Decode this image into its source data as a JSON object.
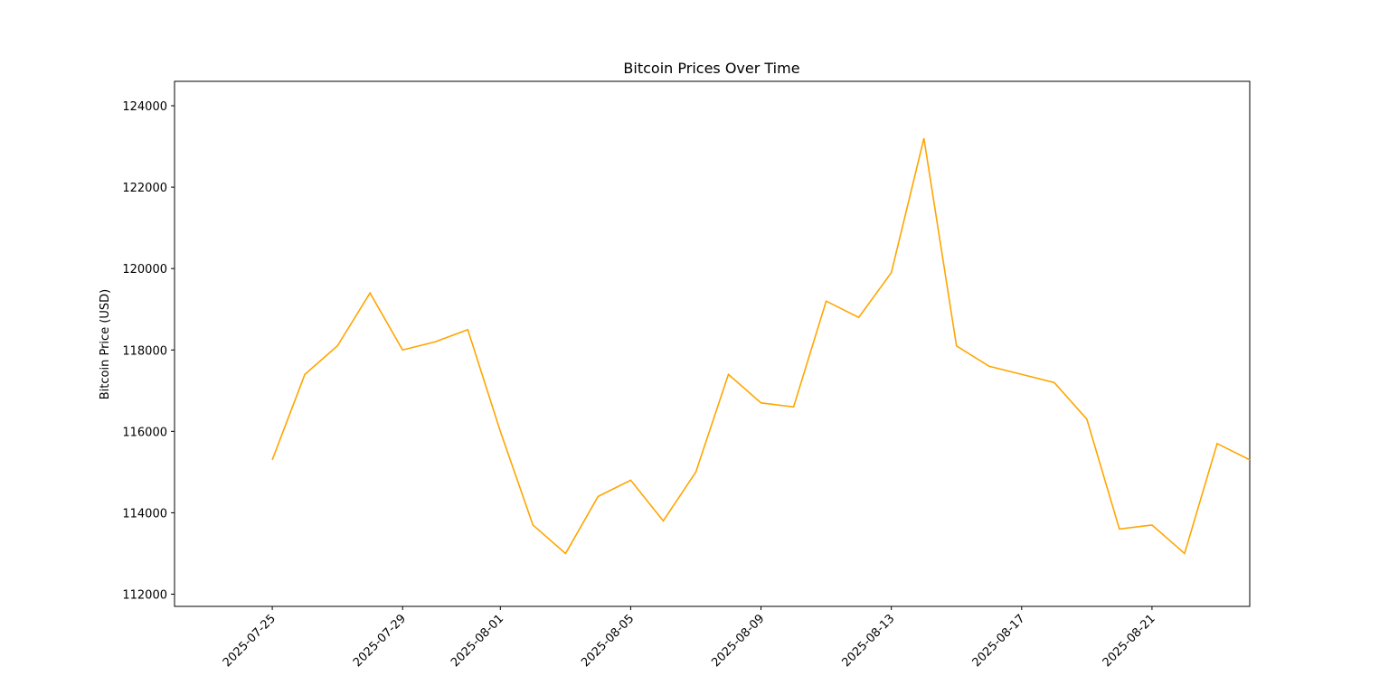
{
  "chart_data": {
    "type": "line",
    "title": "Bitcoin Prices Over Time",
    "x_label": null,
    "y_label": "Bitcoin Price (USD)",
    "x": [
      "2025-07-25",
      "2025-07-26",
      "2025-07-27",
      "2025-07-28",
      "2025-07-29",
      "2025-07-30",
      "2025-07-31",
      "2025-08-01",
      "2025-08-02",
      "2025-08-03",
      "2025-08-04",
      "2025-08-05",
      "2025-08-06",
      "2025-08-07",
      "2025-08-08",
      "2025-08-09",
      "2025-08-10",
      "2025-08-11",
      "2025-08-12",
      "2025-08-13",
      "2025-08-14",
      "2025-08-15",
      "2025-08-16",
      "2025-08-17",
      "2025-08-18",
      "2025-08-19",
      "2025-08-20",
      "2025-08-21",
      "2025-08-22",
      "2025-08-23",
      "2025-08-24"
    ],
    "series": [
      {
        "name": "Bitcoin Price",
        "color": "#ffa500",
        "values": [
          115300,
          117400,
          118100,
          119400,
          118000,
          118200,
          118500,
          116000,
          113700,
          113000,
          114400,
          114800,
          113800,
          115000,
          117400,
          116700,
          116600,
          119200,
          118800,
          119900,
          123200,
          118100,
          117600,
          117400,
          117200,
          116300,
          113600,
          113700,
          113000,
          115700,
          115300
        ]
      }
    ],
    "xlim": [
      "2025-07-22",
      "2025-08-24"
    ],
    "xticks": [
      "2025-07-25",
      "2025-07-29",
      "2025-08-01",
      "2025-08-05",
      "2025-08-09",
      "2025-08-13",
      "2025-08-17",
      "2025-08-21"
    ],
    "ylim": [
      111700,
      124600
    ],
    "yticks": [
      112000,
      114000,
      116000,
      118000,
      120000,
      122000,
      124000
    ],
    "grid": false
  }
}
